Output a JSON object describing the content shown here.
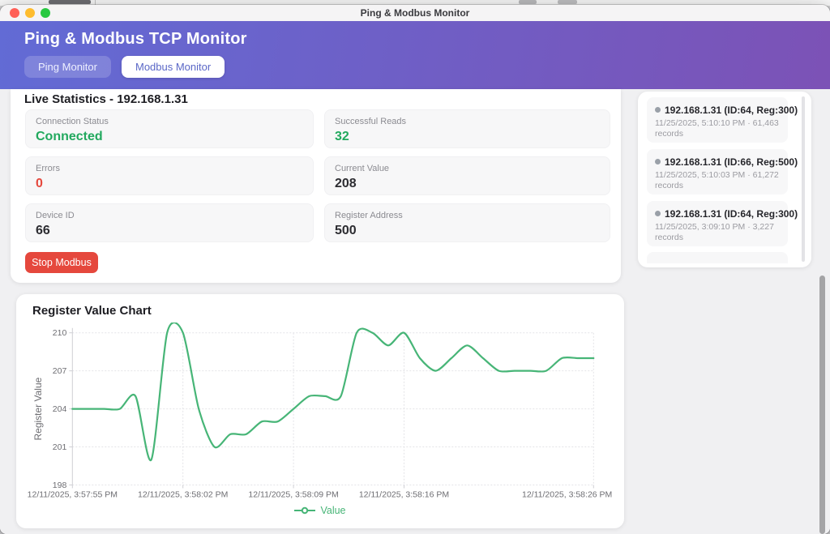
{
  "window": {
    "title": "Ping & Modbus Monitor"
  },
  "header": {
    "title": "Ping & Modbus TCP Monitor",
    "tabs": [
      {
        "label": "Ping Monitor",
        "active": false
      },
      {
        "label": "Modbus Monitor",
        "active": true
      }
    ]
  },
  "stats": {
    "heading": "Live Statistics - 192.168.1.31",
    "cards": [
      {
        "label": "Connection Status",
        "value": "Connected",
        "color": "#22a95e"
      },
      {
        "label": "Successful Reads",
        "value": "32",
        "color": "#22a95e"
      },
      {
        "label": "Errors",
        "value": "0",
        "color": "#e5483d"
      },
      {
        "label": "Current Value",
        "value": "208",
        "color": "#2c2c31"
      },
      {
        "label": "Device ID",
        "value": "66",
        "color": "#2c2c31"
      },
      {
        "label": "Register Address",
        "value": "500",
        "color": "#2c2c31"
      }
    ],
    "stop_button": "Stop Modbus"
  },
  "history": {
    "items": [
      {
        "title": "192.168.1.31 (ID:64, Reg:300)",
        "meta": "11/25/2025, 5:10:10 PM · 61,463 records"
      },
      {
        "title": "192.168.1.31 (ID:66, Reg:500)",
        "meta": "11/25/2025, 5:10:03 PM · 61,272 records"
      },
      {
        "title": "192.168.1.31 (ID:64, Reg:300)",
        "meta": "11/25/2025, 3:09:10 PM · 3,227 records"
      }
    ]
  },
  "chart": {
    "title": "Register Value Chart"
  },
  "chart_data": {
    "type": "line",
    "title": "Register Value Chart",
    "xlabel": "",
    "ylabel": "Register Value",
    "ylim": [
      198,
      210
    ],
    "yticks": [
      198,
      201,
      204,
      207,
      210
    ],
    "grid": true,
    "legend_position": "bottom",
    "series": [
      {
        "name": "Value",
        "color": "#47b577",
        "values": [
          204,
          204,
          204,
          204,
          205,
          200,
          210,
          210,
          204,
          201,
          202,
          202,
          203,
          203,
          204,
          205,
          205,
          205,
          210,
          210,
          209,
          210,
          208,
          207,
          208,
          209,
          208,
          207,
          207,
          207,
          207,
          208,
          208,
          208
        ]
      }
    ],
    "x_tick_indices": [
      0,
      7,
      14,
      21,
      33
    ],
    "x_tick_labels": [
      "12/11/2025, 3:57:55 PM",
      "12/11/2025, 3:58:02 PM",
      "12/11/2025, 3:58:09 PM",
      "12/11/2025, 3:58:16 PM",
      "12/11/2025, 3:58:26 PM"
    ]
  },
  "colors": {
    "header_gradient_start": "#626bd5",
    "header_gradient_end": "#7c52b6",
    "accent_purple": "#5b68c7",
    "green": "#22a95e",
    "red": "#e5483d",
    "chart_line": "#47b577",
    "grid_line": "#e3e3e7",
    "axis_line": "#cfcfd4",
    "tick_text": "#6d6d72"
  }
}
